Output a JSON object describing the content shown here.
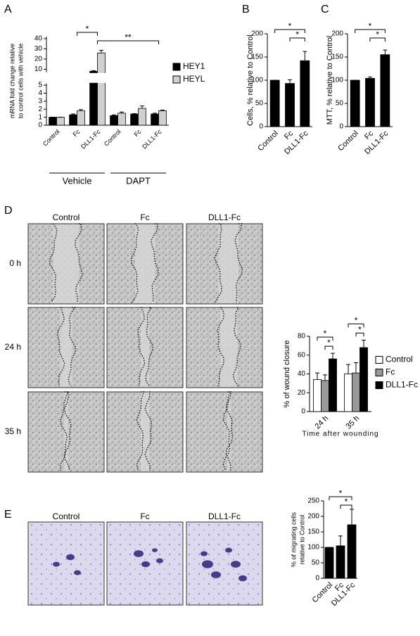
{
  "chart_data": [
    {
      "type": "bar",
      "panel": "A",
      "ylabel": [
        "mRNA fold change relative",
        "to control cells with vehicle"
      ],
      "categories": [
        "Control",
        "Fc",
        "DLL1-Fc",
        "Control",
        "Fc",
        "DLL1-Fc"
      ],
      "groups": [
        {
          "label": "Vehicle",
          "from": 0,
          "to": 2
        },
        {
          "label": "DAPT",
          "from": 3,
          "to": 5
        }
      ],
      "series": [
        {
          "name": "HEY1",
          "color": "#000000",
          "values": [
            1,
            1.3,
            8,
            1.2,
            1.4,
            1.4
          ],
          "errors": [
            0,
            0.1,
            0.6,
            0.1,
            0.05,
            0.1
          ]
        },
        {
          "name": "HEYL",
          "color": "#d0d0d0",
          "values": [
            1,
            1.8,
            26,
            1.5,
            2.1,
            1.8
          ],
          "errors": [
            0,
            0.15,
            2.5,
            0.15,
            0.3,
            0.1
          ]
        }
      ],
      "ylim": [
        0,
        42
      ],
      "axis_break": [
        5.2,
        7
      ],
      "yticks": [
        0,
        1,
        2,
        3,
        4,
        5,
        10,
        20,
        30,
        40
      ],
      "significance": [
        {
          "label": "*",
          "from": 1,
          "to": 2
        },
        {
          "label": "**",
          "from": 2,
          "to": 5
        }
      ],
      "legend": "right"
    },
    {
      "type": "bar",
      "panel": "B",
      "ylabel": "Cells, % relative to Control",
      "categories": [
        "Control",
        "Fc",
        "DLL1-Fc"
      ],
      "values": [
        100,
        93,
        142
      ],
      "errors": [
        0,
        8,
        20
      ],
      "color": "#000000",
      "ylim": [
        0,
        200
      ],
      "yticks": [
        0,
        50,
        100,
        150,
        200
      ],
      "significance": [
        {
          "label": "*",
          "from": 0,
          "to": 2
        },
        {
          "label": "*",
          "from": 1,
          "to": 2
        }
      ]
    },
    {
      "type": "bar",
      "panel": "C",
      "ylabel": "MTT, % relative to Control",
      "categories": [
        "Control",
        "Fc",
        "DLL1-Fc"
      ],
      "values": [
        100,
        104,
        155
      ],
      "errors": [
        0,
        3,
        10
      ],
      "color": "#000000",
      "ylim": [
        0,
        200
      ],
      "yticks": [
        0,
        50,
        100,
        150,
        200
      ],
      "significance": [
        {
          "label": "*",
          "from": 0,
          "to": 2
        },
        {
          "label": "*",
          "from": 1,
          "to": 2
        }
      ]
    },
    {
      "type": "bar",
      "panel": "D",
      "ylabel": "% of wound closure",
      "xlabel": "Time after wounding",
      "categories": [
        "24 h",
        "35 h"
      ],
      "series": [
        {
          "name": "Control",
          "color": "#ffffff",
          "values": [
            34,
            40
          ],
          "errors": [
            7,
            10
          ]
        },
        {
          "name": "Fc",
          "color": "#999999",
          "values": [
            33,
            41
          ],
          "errors": [
            6,
            11
          ]
        },
        {
          "name": "DLL1-Fc",
          "color": "#000000",
          "values": [
            56,
            68
          ],
          "errors": [
            6,
            8
          ]
        }
      ],
      "ylim": [
        0,
        80
      ],
      "yticks": [
        0,
        20,
        40,
        60,
        80
      ],
      "significance": [
        {
          "label": "*",
          "category": 0,
          "from": 0,
          "to": 2
        },
        {
          "label": "*",
          "category": 0,
          "from": 1,
          "to": 2
        },
        {
          "label": "*",
          "category": 1,
          "from": 0,
          "to": 2
        },
        {
          "label": "*",
          "category": 1,
          "from": 1,
          "to": 2
        }
      ],
      "legend": "right"
    },
    {
      "type": "bar",
      "panel": "E",
      "ylabel": [
        "% of migrating cells",
        "relative to Control"
      ],
      "categories": [
        "Control",
        "Fc",
        "DLL1-Fc"
      ],
      "values": [
        100,
        105,
        173
      ],
      "errors": [
        0,
        32,
        50
      ],
      "color": "#000000",
      "ylim": [
        0,
        250
      ],
      "yticks": [
        0,
        50,
        100,
        150,
        200,
        250
      ],
      "significance": [
        {
          "label": "*",
          "from": 0,
          "to": 2
        },
        {
          "label": "*",
          "from": 1,
          "to": 2
        }
      ]
    }
  ],
  "wound_images": {
    "columns": [
      "Control",
      "Fc",
      "DLL1-Fc"
    ],
    "rows": [
      "0 h",
      "24 h",
      "35 h"
    ]
  },
  "transwell_images": {
    "columns": [
      "Control",
      "Fc",
      "DLL1-Fc"
    ]
  }
}
